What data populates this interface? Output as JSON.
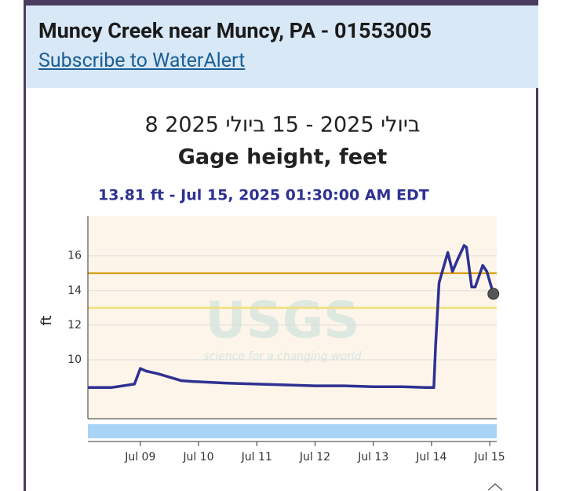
{
  "header": {
    "title": "Muncy Creek near Muncy, PA - 01553005",
    "link": "Subscribe to WaterAlert"
  },
  "chart_data": {
    "type": "line",
    "title": "ביולי 2025 - 15 ביולי 2025 8",
    "subtitle": "Gage height, feet",
    "tooltip": "13.81 ft - Jul 15, 2025 01:30:00 AM EDT",
    "ylabel": "ft",
    "watermark": {
      "logo": "USGS",
      "tagline": "science for a changing world"
    },
    "color": "#2e3192",
    "x": [
      8.1,
      8.5,
      8.7,
      8.9,
      9.0,
      9.1,
      9.3,
      9.5,
      9.7,
      9.9,
      10.5,
      11.0,
      11.5,
      12.0,
      12.5,
      13.0,
      13.5,
      13.9,
      14.04,
      14.07,
      14.13,
      14.28,
      14.36,
      14.45,
      14.56,
      14.6,
      14.69,
      14.75,
      14.88,
      14.95,
      15.0625
    ],
    "values": [
      8.4,
      8.4,
      8.5,
      8.6,
      9.5,
      9.35,
      9.2,
      9.0,
      8.8,
      8.75,
      8.65,
      8.6,
      8.55,
      8.5,
      8.5,
      8.45,
      8.45,
      8.4,
      8.4,
      10.8,
      14.45,
      16.2,
      15.1,
      15.8,
      16.6,
      16.5,
      14.2,
      14.2,
      15.45,
      15.1,
      13.81
    ],
    "thresholds": [
      {
        "value": 15,
        "color": "#d9a21b"
      },
      {
        "value": 13,
        "color": "#f2e07a"
      }
    ],
    "xlim": [
      8.1,
      15.12
    ],
    "xticks": [
      {
        "value": 9,
        "label": "Jul 09"
      },
      {
        "value": 10,
        "label": "Jul 10"
      },
      {
        "value": 11,
        "label": "Jul 11"
      },
      {
        "value": 12,
        "label": "Jul 12"
      },
      {
        "value": 13,
        "label": "Jul 13"
      },
      {
        "value": 14,
        "label": "Jul 14"
      },
      {
        "value": 15,
        "label": "Jul 15"
      }
    ],
    "ylim": [
      6.6,
      18.3
    ],
    "yticks": [
      10,
      12,
      14,
      16
    ],
    "grid": true
  }
}
